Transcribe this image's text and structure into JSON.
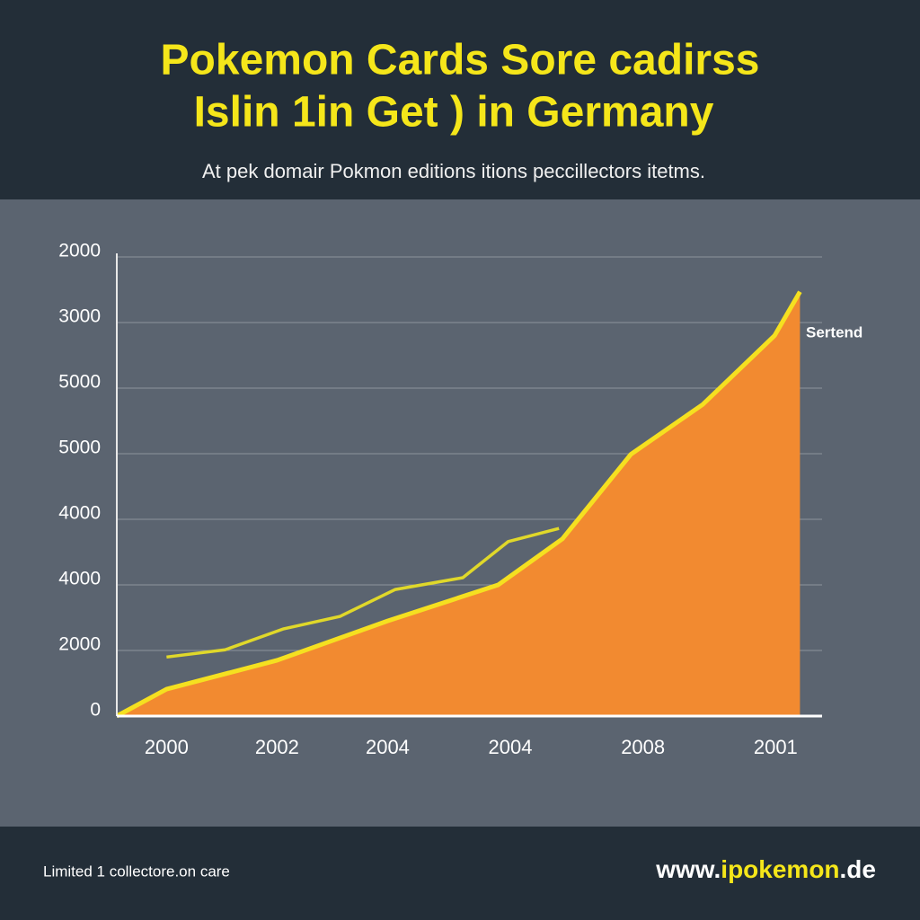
{
  "chart_data": {
    "type": "area",
    "title": [
      "Pokemon Cards Sore cadirss",
      "Islin 1in Get ) in Germany"
    ],
    "subtitle": "At pek domair Pokmon editions itions peccillectors itetms.",
    "annotation": "Sertend",
    "xlim": [
      -0.45,
      5.93
    ],
    "xticks": [
      {
        "value": 0,
        "label": "2000"
      },
      {
        "value": 1,
        "label": "2002"
      },
      {
        "value": 2,
        "label": "2004"
      },
      {
        "value": 3.11,
        "label": "2004"
      },
      {
        "value": 4.31,
        "label": "2008"
      },
      {
        "value": 5.51,
        "label": "2001"
      }
    ],
    "ylim": [
      0,
      7
    ],
    "yticks": [
      0,
      {
        "value": 1,
        "label": "2000"
      },
      {
        "value": 2,
        "label": "4000"
      },
      {
        "value": 3,
        "label": "4000"
      },
      {
        "value": 4,
        "label": "5000"
      },
      {
        "value": 5,
        "label": "5000"
      },
      {
        "value": 6,
        "label": "3000"
      },
      {
        "value": 7,
        "label": "2000"
      }
    ],
    "grid": true,
    "series": [
      {
        "color": "#f28a30",
        "line_color": "#f5e020",
        "fill": true,
        "x": [
          -0.45,
          0,
          1,
          2,
          3,
          3.58,
          4.2,
          4.85,
          5.5,
          5.73
        ],
        "values": [
          0,
          0.41,
          0.85,
          1.45,
          2.0,
          2.7,
          3.99,
          4.75,
          5.8,
          6.47
        ]
      },
      {
        "color": "#e0d82a",
        "fill": false,
        "x": [
          0,
          0.53,
          1.06,
          1.57,
          2.07,
          2.68,
          3.09,
          3.55
        ],
        "values": [
          0.9,
          1.01,
          1.33,
          1.52,
          1.93,
          2.11,
          2.66,
          2.86
        ]
      }
    ]
  },
  "footer": {
    "left": "Limited 1 collectore.on care",
    "site": [
      "www.",
      "ipokemon",
      ".de"
    ]
  }
}
